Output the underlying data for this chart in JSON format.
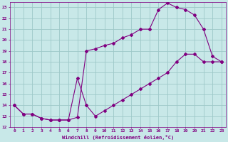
{
  "xlabel": "Windchill (Refroidissement éolien,°C)",
  "xlim": [
    -0.5,
    23.5
  ],
  "ylim": [
    12,
    23.5
  ],
  "xticks": [
    0,
    1,
    2,
    3,
    4,
    5,
    6,
    7,
    8,
    9,
    10,
    11,
    12,
    13,
    14,
    15,
    16,
    17,
    18,
    19,
    20,
    21,
    22,
    23
  ],
  "yticks": [
    12,
    13,
    14,
    15,
    16,
    17,
    18,
    19,
    20,
    21,
    22,
    23
  ],
  "background_color": "#c8e8e8",
  "grid_color": "#9ec8c8",
  "line_color": "#800080",
  "line1_x": [
    0,
    1,
    2,
    3,
    4,
    5,
    6,
    7,
    8,
    9,
    10,
    11,
    12,
    13,
    14,
    15,
    16,
    17,
    18,
    19,
    20,
    21,
    22,
    23
  ],
  "line1_y": [
    14.0,
    13.2,
    13.2,
    12.8,
    12.65,
    12.65,
    12.65,
    12.9,
    19.0,
    19.2,
    19.5,
    19.7,
    20.2,
    20.5,
    21.0,
    21.0,
    22.8,
    23.4,
    23.0,
    22.8,
    22.3,
    21.0,
    18.5,
    18.0
  ],
  "line2_x": [
    0,
    1,
    2,
    3,
    4,
    5,
    6,
    7,
    8,
    9,
    10,
    11,
    12,
    13,
    14,
    15,
    16,
    17,
    18,
    19,
    20,
    21,
    22,
    23
  ],
  "line2_y": [
    14.0,
    13.2,
    13.2,
    12.8,
    12.65,
    12.65,
    12.65,
    16.5,
    14.0,
    13.0,
    13.5,
    14.0,
    14.5,
    15.0,
    15.5,
    16.0,
    16.5,
    17.0,
    18.0,
    18.7,
    18.7,
    18.0,
    18.0,
    18.0
  ]
}
